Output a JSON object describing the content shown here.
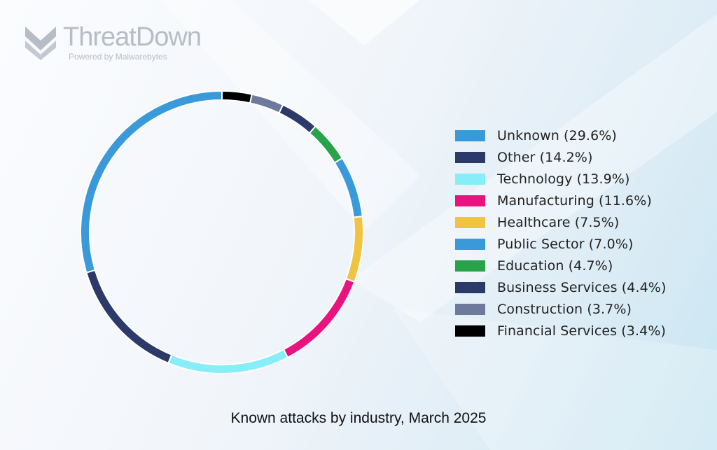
{
  "logo": {
    "name": "ThreatDown",
    "tagline": "Powered by Malwarebytes"
  },
  "chart_data": {
    "type": "pie",
    "donut": true,
    "title": "Known attacks by industry, March 2025",
    "legend_position": "right",
    "start_from": "top, clockwise",
    "slices_clockwise_order": [
      "Financial Services",
      "Construction",
      "Business Services",
      "Education",
      "Public Sector",
      "Healthcare",
      "Manufacturing",
      "Technology",
      "Other",
      "Unknown"
    ],
    "series": [
      {
        "name": "Unknown",
        "value": 29.6,
        "color": "#3a9ad9",
        "label": "Unknown (29.6%)"
      },
      {
        "name": "Other",
        "value": 14.2,
        "color": "#2b3a68",
        "label": "Other (14.2%)"
      },
      {
        "name": "Technology",
        "value": 13.9,
        "color": "#87eef7",
        "label": "Technology (13.9%)"
      },
      {
        "name": "Manufacturing",
        "value": 11.6,
        "color": "#e8137e",
        "label": "Manufacturing (11.6%)"
      },
      {
        "name": "Healthcare",
        "value": 7.5,
        "color": "#f0c343",
        "label": "Healthcare (7.5%)"
      },
      {
        "name": "Public Sector",
        "value": 7.0,
        "color": "#3a9ad9",
        "label": "Public Sector (7.0%)"
      },
      {
        "name": "Education",
        "value": 4.7,
        "color": "#27a34a",
        "label": "Education (4.7%)"
      },
      {
        "name": "Business Services",
        "value": 4.4,
        "color": "#2b3a68",
        "label": "Business Services (4.4%)"
      },
      {
        "name": "Construction",
        "value": 3.7,
        "color": "#6e7a9c",
        "label": "Construction (3.7%)"
      },
      {
        "name": "Financial Services",
        "value": 3.4,
        "color": "#000000",
        "label": "Financial Services (3.4%)"
      }
    ]
  }
}
